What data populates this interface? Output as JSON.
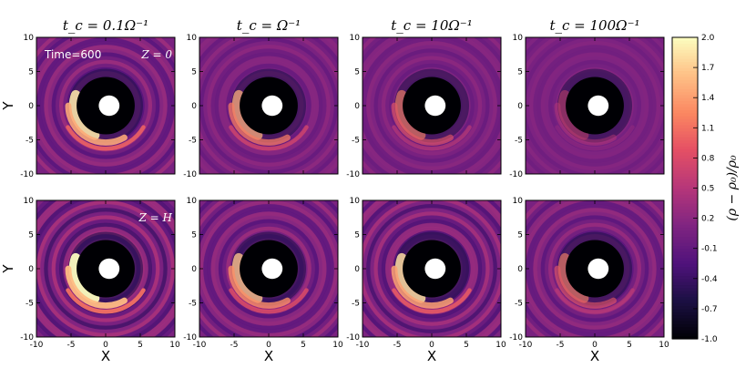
{
  "chart_data": {
    "type": "heatmap",
    "column_titles": [
      "t_c = 0.1Ω⁻¹",
      "t_c = Ω⁻¹",
      "t_c = 10Ω⁻¹",
      "t_c = 100Ω⁻¹"
    ],
    "row_labels": [
      "Z = 0",
      "Z = H"
    ],
    "annotation": "Time=600",
    "xlabel": "X",
    "ylabel": "Y",
    "xlim": [
      -10,
      10
    ],
    "ylim": [
      -10,
      10
    ],
    "x_ticks": [
      -10,
      -5,
      0,
      5,
      10
    ],
    "y_ticks": [
      -10,
      -5,
      0,
      5,
      10
    ],
    "colorbar": {
      "label": "(ρ − ρ₀)/ρ₀",
      "min": -1.0,
      "max": 2.0,
      "ticks": [
        2.0,
        1.7,
        1.4,
        1.1,
        0.8,
        0.5,
        0.2,
        -0.1,
        -0.4,
        -0.7,
        -1.0
      ],
      "colormap": "magma"
    },
    "panels": [
      {
        "row": 0,
        "col": 0,
        "spiral_strength": 0.9,
        "ring_contrast": 0.35
      },
      {
        "row": 0,
        "col": 1,
        "spiral_strength": 0.65,
        "ring_contrast": 0.2
      },
      {
        "row": 0,
        "col": 2,
        "spiral_strength": 0.45,
        "ring_contrast": 0.18
      },
      {
        "row": 0,
        "col": 3,
        "spiral_strength": 0.15,
        "ring_contrast": 0.12
      },
      {
        "row": 1,
        "col": 0,
        "spiral_strength": 1.0,
        "ring_contrast": 0.5
      },
      {
        "row": 1,
        "col": 1,
        "spiral_strength": 0.75,
        "ring_contrast": 0.35
      },
      {
        "row": 1,
        "col": 2,
        "spiral_strength": 0.85,
        "ring_contrast": 0.45
      },
      {
        "row": 1,
        "col": 3,
        "spiral_strength": 0.45,
        "ring_contrast": 0.3
      }
    ]
  }
}
